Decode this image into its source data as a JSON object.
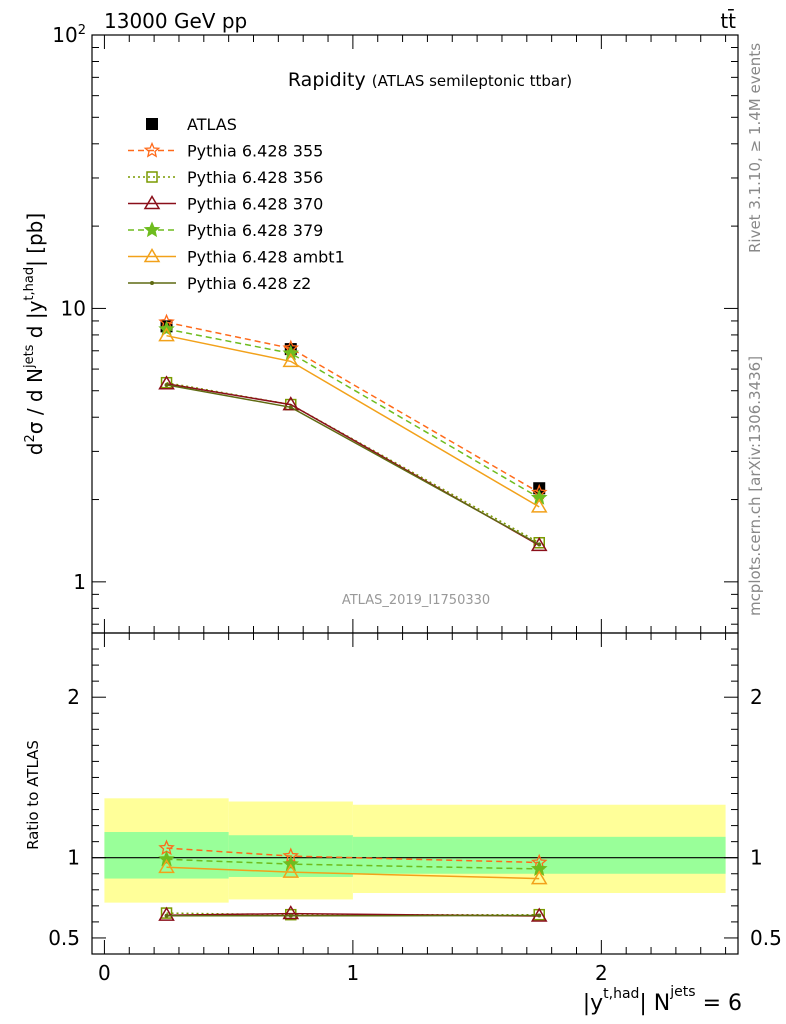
{
  "header": {
    "left": "13000 GeV pp",
    "right": "tt̄"
  },
  "side_text": {
    "rivet": "Rivet 3.1.10, ≥ 1.4M events",
    "mcplots": "mcplots.cern.ch [arXiv:1306.3436]"
  },
  "chart_data": [
    {
      "type": "line",
      "title": "Rapidity",
      "subtitle": "(ATLAS semileptonic ttbar)",
      "analysis_label": "ATLAS_2019_I1750330",
      "ylabel": "d²σ / d N^jets d |y^t,had| [pb]",
      "yscale": "log",
      "ylim": [
        0.65,
        100
      ],
      "yticks": [
        1,
        10,
        100
      ],
      "ytick_labels": [
        "1",
        "10",
        "10²"
      ],
      "xlim": [
        -0.05,
        2.55
      ],
      "legend_placement": "top-left",
      "x": [
        0.25,
        0.75,
        1.75
      ],
      "x_bins": [
        [
          0.0,
          0.5
        ],
        [
          0.5,
          1.0
        ],
        [
          1.0,
          2.5
        ]
      ],
      "reference": {
        "name": "ATLAS",
        "values": [
          8.6,
          7.1,
          2.2
        ]
      },
      "series": [
        {
          "name": "Pythia 6.428 355",
          "color": "#ff6a1a",
          "marker": "star-open",
          "dash": "dashed",
          "values": [
            8.9,
            7.15,
            2.12
          ]
        },
        {
          "name": "Pythia 6.428 356",
          "color": "#7a9a00",
          "marker": "square-open",
          "dash": "dotted",
          "values": [
            5.35,
            4.45,
            1.39
          ]
        },
        {
          "name": "Pythia 6.428 370",
          "color": "#8a0f1a",
          "marker": "triangle-open",
          "dash": "solid",
          "values": [
            5.3,
            4.45,
            1.36
          ]
        },
        {
          "name": "Pythia 6.428 379",
          "color": "#6ebc1e",
          "marker": "star-filled",
          "dash": "dashed",
          "values": [
            8.4,
            6.85,
            2.03
          ]
        },
        {
          "name": "Pythia 6.428 ambt1",
          "color": "#f2a11a",
          "marker": "triangle-open",
          "dash": "solid",
          "values": [
            7.95,
            6.4,
            1.88
          ]
        },
        {
          "name": "Pythia 6.428 z2",
          "color": "#5f6a12",
          "marker": "dot",
          "dash": "solid",
          "values": [
            5.25,
            4.35,
            1.37
          ]
        }
      ]
    },
    {
      "type": "line",
      "ylabel": "Ratio to ATLAS",
      "xlabel_main": "|y",
      "xlabel_sup1": "t,had",
      "xlabel_mid": "| N",
      "xlabel_sup2": "jets",
      "xlabel_tail": " = 6",
      "ylim": [
        0.4,
        2.4
      ],
      "yticks": [
        0.5,
        1,
        2
      ],
      "xticks": [
        0,
        1,
        2
      ],
      "x": [
        0.25,
        0.75,
        1.75
      ],
      "bands": {
        "total": [
          [
            0.72,
            1.37
          ],
          [
            0.74,
            1.35
          ],
          [
            0.78,
            1.33
          ]
        ],
        "stat": [
          [
            0.87,
            1.16
          ],
          [
            0.88,
            1.14
          ],
          [
            0.9,
            1.13
          ]
        ],
        "total_color": "#ffff99",
        "stat_color": "#99ff99"
      },
      "series": [
        {
          "name": "Pythia 6.428 355",
          "values": [
            1.06,
            1.01,
            0.97
          ]
        },
        {
          "name": "Pythia 6.428 356",
          "values": [
            0.655,
            0.645,
            0.645
          ]
        },
        {
          "name": "Pythia 6.428 370",
          "values": [
            0.642,
            0.652,
            0.637
          ]
        },
        {
          "name": "Pythia 6.428 379",
          "values": [
            0.99,
            0.96,
            0.93
          ]
        },
        {
          "name": "Pythia 6.428 ambt1",
          "values": [
            0.94,
            0.91,
            0.87
          ]
        },
        {
          "name": "Pythia 6.428 z2",
          "values": [
            0.638,
            0.638,
            0.64
          ]
        }
      ]
    }
  ]
}
